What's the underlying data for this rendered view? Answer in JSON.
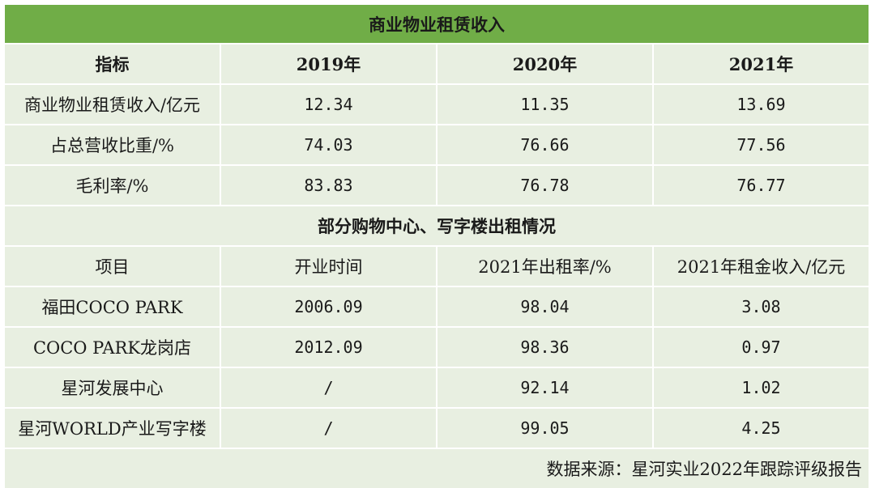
{
  "title": "商业物业租赁收入",
  "table1": {
    "headers": [
      "指标",
      "2019年",
      "2020年",
      "2021年"
    ],
    "rows": [
      [
        "商业物业租赁收入/亿元",
        "12.34",
        "11.35",
        "13.69"
      ],
      [
        "占总营收比重/%",
        "74.03",
        "76.66",
        "77.56"
      ],
      [
        "毛利率/%",
        "83.83",
        "76.78",
        "76.77"
      ]
    ]
  },
  "section2": "部分购物中心、写字楼出租情况",
  "table2": {
    "headers": [
      "项目",
      "开业时间",
      "2021年出租率/%",
      "2021年租金收入/亿元"
    ],
    "rows": [
      [
        "福田COCO PARK",
        "2006.09",
        "98.04",
        "3.08"
      ],
      [
        "COCO PARK龙岗店",
        "2012.09",
        "98.36",
        "0.97"
      ],
      [
        "星河发展中心",
        "/",
        "92.14",
        "1.02"
      ],
      [
        "星河WORLD产业写字楼",
        "/",
        "99.05",
        "4.25"
      ]
    ]
  },
  "source": "数据来源：星河实业2022年跟踪评级报告",
  "colors": {
    "header_green": "#70ad47",
    "cell_bg": "#e8efe1"
  }
}
